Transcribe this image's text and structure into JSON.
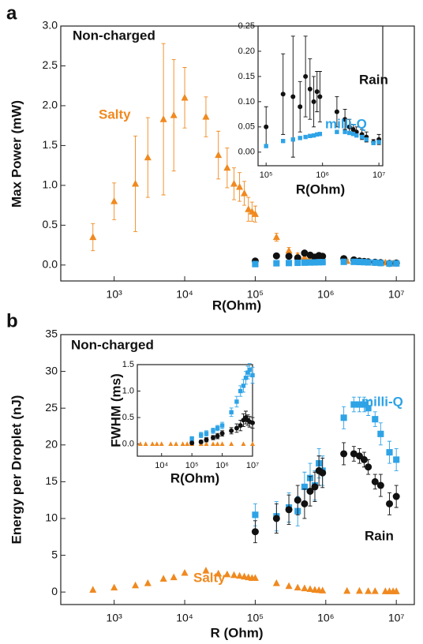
{
  "chart_data": [
    {
      "type": "scatter",
      "panel": "a",
      "annotation": "Non-charged",
      "xlabel": "R(Ohm)",
      "ylabel": "Max Power (mW)",
      "xscale": "log",
      "xlim": [
        175,
        18000000
      ],
      "ylim": [
        -0.2,
        3.0
      ],
      "xticks": [
        {
          "value": 1000,
          "label": "10³"
        },
        {
          "value": 10000,
          "label": "10⁴"
        },
        {
          "value": 100000,
          "label": "10⁵"
        },
        {
          "value": 1000000,
          "label": "10⁶"
        },
        {
          "value": 10000000,
          "label": "10⁷"
        }
      ],
      "yticks": [
        {
          "value": 0,
          "label": "0.0"
        },
        0.5,
        {
          "value": 1,
          "label": "1.0"
        },
        1.5,
        {
          "value": 2,
          "label": "2.0"
        },
        2.5,
        {
          "value": 3,
          "label": "3.0"
        }
      ],
      "series": [
        {
          "name": "Salty",
          "color": "#f0891f",
          "marker": "triangle",
          "x": [
            500,
            1000,
            2000,
            3000,
            5000,
            7000,
            10000,
            20000,
            30000,
            40000,
            50000,
            60000,
            70000,
            80000,
            90000,
            100000,
            200000,
            300000,
            400000,
            500000,
            600000,
            700000,
            800000,
            900000,
            2000000,
            3000000,
            4000000,
            5000000,
            7000000,
            8000000,
            9000000,
            10000000
          ],
          "values": [
            0.35,
            0.8,
            1.02,
            1.35,
            1.83,
            1.88,
            2.1,
            1.86,
            1.38,
            1.22,
            1.02,
            0.98,
            0.9,
            0.7,
            0.67,
            0.64,
            0.35,
            0.18,
            0.12,
            0.1,
            0.09,
            0.08,
            0.07,
            0.06,
            0.05,
            0.04,
            0.04,
            0.03,
            0.03,
            0.02,
            0.02,
            0.02
          ],
          "errors": [
            0.17,
            0.23,
            0.6,
            0.5,
            0.95,
            0.7,
            0.38,
            0.25,
            0.3,
            0.25,
            0.2,
            0.18,
            0.15,
            0.15,
            0.12,
            0.1,
            0.05,
            0.04,
            0.03,
            0.03,
            0.02,
            0.02,
            0.02,
            0.02,
            0.02,
            0.02,
            0.02,
            0.01,
            0.01,
            0.01,
            0.01,
            0.01
          ]
        },
        {
          "name": "Rain",
          "color": "#111111",
          "marker": "circle",
          "x": [
            100000,
            200000,
            300000,
            400000,
            500000,
            600000,
            700000,
            800000,
            900000,
            1800000,
            2500000,
            3000000,
            3500000,
            4000000,
            5000000,
            6000000,
            8000000,
            10000000
          ],
          "values": [
            0.05,
            0.115,
            0.11,
            0.09,
            0.15,
            0.125,
            0.1,
            0.12,
            0.11,
            0.08,
            0.065,
            0.05,
            0.045,
            0.04,
            0.035,
            0.03,
            0.02,
            0.025
          ]
        },
        {
          "name": "milli-Q",
          "color": "#2ea3e6",
          "marker": "square",
          "x": [
            100000,
            200000,
            300000,
            400000,
            500000,
            600000,
            700000,
            800000,
            900000,
            1800000,
            2500000,
            3000000,
            3500000,
            4000000,
            5000000,
            6000000,
            8000000,
            10000000
          ],
          "values": [
            0.012,
            0.022,
            0.025,
            0.028,
            0.03,
            0.032,
            0.033,
            0.035,
            0.036,
            0.04,
            0.04,
            0.038,
            0.036,
            0.033,
            0.03,
            0.025,
            0.018,
            0.02
          ]
        }
      ]
    },
    {
      "type": "scatter",
      "xlabel": "R(Ohm)",
      "xscale": "log",
      "xlim": [
        72000,
        11700000
      ],
      "ylim": [
        -0.027,
        0.25
      ],
      "xticks": [
        {
          "value": 100000,
          "label": "10⁵"
        },
        {
          "value": 1000000,
          "label": "10⁶"
        },
        {
          "value": 10000000,
          "label": "10⁷"
        }
      ],
      "yticks": [
        {
          "value": 0,
          "label": "0.00"
        },
        0.05,
        {
          "value": 0.1,
          "label": "0.10"
        },
        0.15,
        {
          "value": 0.2,
          "label": "0.20"
        },
        0.25
      ],
      "series": [
        {
          "name": "Rain",
          "color": "#111111",
          "marker": "circle",
          "x": [
            100000,
            200000,
            300000,
            400000,
            500000,
            600000,
            700000,
            800000,
            900000,
            1800000,
            2500000,
            3000000,
            3500000,
            4000000,
            5000000,
            6000000,
            8000000,
            10000000
          ],
          "values": [
            0.05,
            0.115,
            0.11,
            0.09,
            0.15,
            0.125,
            0.1,
            0.12,
            0.11,
            0.08,
            0.065,
            0.05,
            0.045,
            0.04,
            0.035,
            0.03,
            0.02,
            0.025
          ],
          "errors": [
            0.04,
            0.08,
            0.12,
            0.05,
            0.08,
            0.06,
            0.05,
            0.04,
            0.05,
            0.03,
            0.02,
            0.015,
            0.01,
            0.01,
            0.01,
            0.01,
            0.005,
            0.01
          ]
        },
        {
          "name": "milli-Q",
          "color": "#2ea3e6",
          "marker": "square",
          "x": [
            100000,
            200000,
            300000,
            400000,
            500000,
            600000,
            700000,
            800000,
            900000,
            1800000,
            2500000,
            3000000,
            3500000,
            4000000,
            5000000,
            6000000,
            8000000,
            10000000
          ],
          "values": [
            0.012,
            0.022,
            0.025,
            0.028,
            0.03,
            0.032,
            0.033,
            0.035,
            0.036,
            0.04,
            0.04,
            0.038,
            0.036,
            0.033,
            0.03,
            0.025,
            0.018,
            0.02
          ]
        }
      ]
    },
    {
      "type": "scatter",
      "panel": "b",
      "annotation": "Non-charged",
      "xlabel": "R (Ohm)",
      "ylabel": "Energy per Droplet (nJ)",
      "xscale": "log",
      "xlim": [
        175,
        18000000
      ],
      "ylim": [
        -1.7,
        35
      ],
      "xticks": [
        {
          "value": 1000,
          "label": "10³"
        },
        {
          "value": 10000,
          "label": "10⁴"
        },
        {
          "value": 100000,
          "label": "10⁵"
        },
        {
          "value": 1000000,
          "label": "10⁶"
        },
        {
          "value": 10000000,
          "label": "10⁷"
        }
      ],
      "yticks": [
        0,
        5,
        10,
        15,
        20,
        25,
        30,
        35
      ],
      "series": [
        {
          "name": "Salty",
          "color": "#f0891f",
          "marker": "triangle",
          "x": [
            500,
            1000,
            2000,
            3000,
            5000,
            7000,
            10000,
            20000,
            30000,
            40000,
            50000,
            60000,
            70000,
            80000,
            90000,
            100000,
            200000,
            300000,
            400000,
            500000,
            600000,
            700000,
            800000,
            900000,
            2000000,
            3000000,
            4000000,
            5000000,
            7000000,
            8000000,
            9000000,
            10000000
          ],
          "values": [
            0.3,
            0.6,
            0.9,
            1.2,
            1.8,
            2.0,
            2.6,
            2.9,
            2.5,
            2.4,
            2.3,
            2.2,
            2.1,
            2.0,
            1.9,
            1.9,
            1.2,
            0.8,
            0.6,
            0.5,
            0.4,
            0.3,
            0.25,
            0.2,
            0.15,
            0.15,
            0.12,
            0.12,
            0.1,
            0.1,
            0.1,
            0.1
          ]
        },
        {
          "name": "milli-Q",
          "color": "#2ea3e6",
          "marker": "square",
          "x": [
            100000,
            200000,
            300000,
            400000,
            500000,
            600000,
            700000,
            800000,
            900000,
            1800000,
            2500000,
            3000000,
            3500000,
            4000000,
            5000000,
            6000000,
            8000000,
            10000000
          ],
          "values": [
            10.5,
            10.3,
            11.5,
            11,
            14.3,
            15.5,
            14.5,
            17.5,
            16.5,
            23.7,
            25.5,
            25.5,
            25.5,
            25,
            23.5,
            21.5,
            19,
            18
          ],
          "errors": [
            1.5,
            2,
            2,
            2,
            2,
            2,
            2,
            2,
            2,
            1.5,
            1,
            1,
            1,
            1,
            1,
            1.5,
            1.5,
            1.5
          ]
        },
        {
          "name": "Rain",
          "color": "#111111",
          "marker": "circle",
          "x": [
            100000,
            200000,
            300000,
            400000,
            500000,
            600000,
            700000,
            800000,
            900000,
            1800000,
            2500000,
            3000000,
            3500000,
            4000000,
            5000000,
            6000000,
            8000000,
            10000000
          ],
          "values": [
            8.2,
            10,
            11.2,
            12.5,
            12,
            13.7,
            14.3,
            16.5,
            16.2,
            18.8,
            18.8,
            18.5,
            18,
            17,
            15,
            14.5,
            12,
            13
          ],
          "errors": [
            1.5,
            2,
            2,
            2,
            2,
            2,
            2,
            2,
            2,
            1.5,
            1,
            1,
            1,
            1,
            1,
            1.5,
            1.5,
            1.5
          ]
        }
      ]
    },
    {
      "type": "scatter",
      "xlabel": "R(Ohm)",
      "ylabel": "FWHM (ms)",
      "xscale": "log",
      "xlim": [
        1585,
        10000000
      ],
      "ylim": [
        -0.23,
        1.5
      ],
      "xticks": [
        {
          "value": 10000,
          "label": "10⁴"
        },
        {
          "value": 100000,
          "label": "10⁵"
        },
        {
          "value": 1000000,
          "label": "10⁶"
        },
        {
          "value": 10000000,
          "label": "10⁷"
        }
      ],
      "yticks": [
        {
          "value": 0,
          "label": "0.0"
        },
        0.5,
        {
          "value": 1,
          "label": "1.0"
        },
        1.5
      ],
      "series": [
        {
          "name": "Salty",
          "color": "#f0891f",
          "marker": "triangle",
          "x": [
            2000,
            3000,
            5000,
            7000,
            10000,
            20000,
            30000,
            50000,
            70000,
            100000,
            200000,
            300000,
            500000,
            700000,
            1000000,
            2000000,
            5000000,
            10000000
          ],
          "values": [
            0,
            0,
            0,
            0,
            0,
            0,
            0,
            0,
            0,
            0,
            0,
            0,
            0,
            0,
            0,
            0,
            0,
            0
          ]
        },
        {
          "name": "milli-Q",
          "color": "#2ea3e6",
          "marker": "square",
          "x": [
            100000,
            200000,
            300000,
            500000,
            700000,
            1000000,
            2000000,
            3000000,
            4000000,
            5000000,
            6000000,
            7000000,
            8000000,
            10000000
          ],
          "values": [
            0.1,
            0.17,
            0.2,
            0.25,
            0.3,
            0.35,
            0.6,
            0.8,
            1.0,
            1.1,
            1.25,
            1.35,
            1.4,
            1.3
          ],
          "errors": [
            0.04,
            0.05,
            0.05,
            0.05,
            0.05,
            0.06,
            0.08,
            0.1,
            0.1,
            0.12,
            0.12,
            0.12,
            0.12,
            0.15
          ]
        },
        {
          "name": "Rain",
          "color": "#111111",
          "marker": "circle",
          "x": [
            100000,
            200000,
            300000,
            500000,
            700000,
            1000000,
            2000000,
            3000000,
            4000000,
            5000000,
            6000000,
            7000000,
            8000000,
            10000000
          ],
          "values": [
            0.02,
            0.04,
            0.08,
            0.12,
            0.15,
            0.2,
            0.25,
            0.3,
            0.35,
            0.45,
            0.5,
            0.45,
            0.42,
            0.4
          ],
          "errors": [
            0.03,
            0.03,
            0.04,
            0.04,
            0.05,
            0.05,
            0.06,
            0.08,
            0.1,
            0.12,
            0.12,
            0.1,
            0.1,
            0.1
          ]
        }
      ]
    }
  ]
}
